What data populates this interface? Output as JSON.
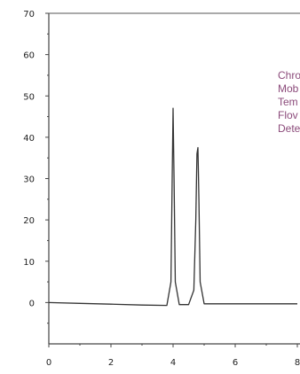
{
  "chart_data": {
    "type": "line",
    "title": "",
    "xlabel": "",
    "ylabel": "",
    "xlim": [
      0,
      8
    ],
    "ylim": [
      -10,
      70
    ],
    "xticks": [
      0,
      2,
      4,
      6,
      8
    ],
    "yticks": [
      0,
      10,
      20,
      30,
      40,
      50,
      60,
      70
    ],
    "x_tick_labels": [
      "0",
      "2",
      "4",
      "6",
      "8"
    ],
    "y_tick_labels": [
      "0",
      "10",
      "20",
      "30",
      "40",
      "50",
      "60",
      "70"
    ],
    "grid": false,
    "series": [
      {
        "color": "#333333",
        "x": [
          0,
          1,
          2,
          3,
          3.8,
          3.93,
          3.97,
          4.0,
          4.03,
          4.07,
          4.2,
          4.5,
          4.67,
          4.73,
          4.77,
          4.8,
          4.83,
          4.87,
          5.0,
          6,
          7,
          8
        ],
        "y": [
          0,
          -0.2,
          -0.4,
          -0.6,
          -0.7,
          5,
          30,
          47,
          30,
          5,
          -0.5,
          -0.5,
          3,
          20,
          36,
          37.5,
          25,
          5,
          -0.3,
          -0.3,
          -0.3,
          -0.3
        ]
      }
    ],
    "annotations": [
      "Chro",
      "Mob",
      "Tem",
      "Flov",
      "Dete"
    ],
    "annotation_color": "#8b4a7a"
  }
}
